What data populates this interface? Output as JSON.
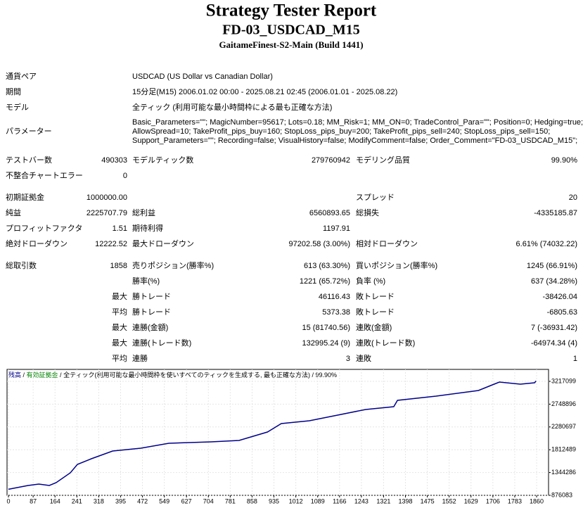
{
  "report": {
    "header": {
      "title": "Strategy Tester Report",
      "subtitle": "FD-03_USDCAD_M15",
      "build": "GaitameFinest-S2-Main (Build 1441)"
    },
    "info": [
      [
        "通貨ペア",
        "USDCAD (US Dollar vs Canadian Dollar)"
      ],
      [
        "期間",
        "15分足(M15) 2006.01.02 00:00 - 2025.08.21 02:45 (2006.01.01 - 2025.08.22)"
      ],
      [
        "モデル",
        "全ティック (利用可能な最小時間枠による最も正確な方法)"
      ],
      [
        "パラメーター",
        [
          "Basic_Parameters=\"\"; MagicNumber=95617; Lots=0.18; MM_Risk=1; MM_ON=0; TradeControl_Para=\"\"; Position=0; Hedging=true;",
          "AllowSpread=10; TakeProfit_pips_buy=160; StopLoss_pips_buy=200; TakeProfit_pips_sell=240; StopLoss_pips_sell=150;",
          "Support_Parameters=\"\"; Recording=false; VisualHistory=false; ModifyComment=false; Order_Comment=\"FD-03_USDCAD_M15\";"
        ]
      ]
    ],
    "stats": [
      [
        "テストバー数",
        "490303",
        "モデルティック数",
        "279760942",
        "モデリング品質",
        "99.90%"
      ],
      [
        "不整合チャートエラー",
        "0",
        null,
        null,
        null,
        null
      ],
      [
        "初期証拠金",
        "1000000.00",
        null,
        null,
        "スプレッド",
        "20"
      ],
      [
        "純益",
        "2225707.79",
        "総利益",
        "6560893.65",
        "総損失",
        "-4335185.87"
      ],
      [
        "プロフィットファクタ",
        "1.51",
        "期待利得",
        "1197.91",
        null,
        null
      ],
      [
        "絶対ドローダウン",
        "12222.52",
        "最大ドローダウン",
        "97202.58 (3.00%)",
        "相対ドローダウン",
        "6.61% (74032.22)"
      ],
      [
        "総取引数",
        "1858",
        "売りポジション(勝率%)",
        "613 (63.30%)",
        "買いポジション(勝率%)",
        "1245 (66.91%)"
      ],
      [
        null,
        null,
        "勝率(%)",
        "1221 (65.72%)",
        "負率 (%)",
        "637 (34.28%)"
      ],
      [
        null,
        "最大",
        "勝トレード",
        "46116.43",
        "敗トレード",
        "-38426.04"
      ],
      [
        null,
        "平均",
        "勝トレード",
        "5373.38",
        "敗トレード",
        "-6805.63"
      ],
      [
        null,
        "最大",
        "連勝(金額)",
        "15 (81740.56)",
        "連敗(金額)",
        "7 (-36931.42)"
      ],
      [
        null,
        "最大",
        "連勝(トレード数)",
        "132995.24 (9)",
        "連敗(トレード数)",
        "-64974.34 (4)"
      ],
      [
        null,
        "平均",
        "連勝",
        "3",
        "連敗",
        "1"
      ]
    ]
  },
  "chart_data": {
    "type": "line",
    "separator": " / ",
    "equity_label": {
      "text": "有効証拠金",
      "color": "#008000"
    },
    "note": "全ティック(利用可能な最小時間枠を使いすべてのティックを生成する, 最も正確な方法)",
    "quality": "99.90%",
    "x": [
      0,
      69,
      107,
      144,
      168,
      218,
      243,
      292,
      367,
      466,
      565,
      713,
      812,
      912,
      961,
      1060,
      1159,
      1258,
      1357,
      1370,
      1506,
      1655,
      1704,
      1729,
      1803,
      1853,
      1858
    ],
    "series": [
      {
        "name": "残高",
        "color": "#00008b",
        "values": [
          1000000,
          1078383,
          1107283,
          1078383,
          1136183,
          1338483,
          1511883,
          1627483,
          1786433,
          1844233,
          1945383,
          1974283,
          2003183,
          2176583,
          2349983,
          2407783,
          2523383,
          2638983,
          2696783,
          2826833,
          2913533,
          3029133,
          3144733,
          3202533,
          3159183,
          3188083,
          3225707
        ]
      }
    ],
    "xlim": [
      0,
      1902
    ],
    "ylim": [
      876083,
      3462633
    ],
    "xticks": [
      0,
      87,
      164,
      241,
      318,
      395,
      472,
      549,
      627,
      704,
      781,
      858,
      935,
      1012,
      1089,
      1166,
      1243,
      1321,
      1398,
      1475,
      1552,
      1629,
      1706,
      1783,
      1860
    ],
    "yticks": [
      876083,
      1344286,
      1812489,
      2280697,
      2748896,
      3217099
    ],
    "grid": true
  }
}
